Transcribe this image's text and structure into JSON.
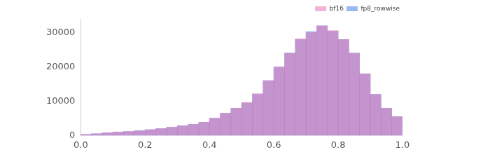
{
  "chart_data": {
    "type": "histogram",
    "bins": [
      0,
      0.0333,
      0.0667,
      0.1,
      0.1333,
      0.1667,
      0.2,
      0.2333,
      0.2667,
      0.3,
      0.3333,
      0.3667,
      0.4,
      0.4333,
      0.4667,
      0.5,
      0.5333,
      0.5667,
      0.6,
      0.6333,
      0.6667,
      0.7,
      0.7333,
      0.7667,
      0.8,
      0.8333,
      0.8667,
      0.9,
      0.9333,
      0.9667,
      1.0
    ],
    "series": [
      {
        "name": "bf16",
        "color": "#e377b4",
        "values": [
          300,
          500,
          800,
          1000,
          1200,
          1400,
          1700,
          2000,
          2400,
          2800,
          3300,
          3900,
          5000,
          6500,
          8000,
          9600,
          12200,
          16000,
          20000,
          24000,
          28200,
          30000,
          32000,
          30600,
          28000,
          24000,
          18000,
          12000,
          8000,
          5500
        ]
      },
      {
        "name": "fp8_rowwise",
        "color": "#4a7fe0",
        "values": [
          300,
          500,
          800,
          1000,
          1200,
          1400,
          1700,
          2000,
          2400,
          2800,
          3300,
          3900,
          5000,
          6500,
          8000,
          9500,
          12000,
          16000,
          20000,
          24000,
          28000,
          30300,
          32000,
          30400,
          28000,
          24000,
          18000,
          12000,
          8000,
          5500
        ]
      }
    ],
    "xlim": [
      0,
      1
    ],
    "xticks": [
      {
        "value": 0,
        "label": "0.0"
      },
      {
        "value": 0.2,
        "label": "0.2"
      },
      {
        "value": 0.4,
        "label": "0.4"
      },
      {
        "value": 0.6,
        "label": "0.6"
      },
      {
        "value": 0.8,
        "label": "0.8"
      },
      {
        "value": 1,
        "label": "1.0"
      }
    ],
    "ylim": [
      0,
      34000
    ],
    "yticks": [
      0,
      10000,
      20000,
      30000
    ],
    "grid": false,
    "legend": "upper right"
  }
}
